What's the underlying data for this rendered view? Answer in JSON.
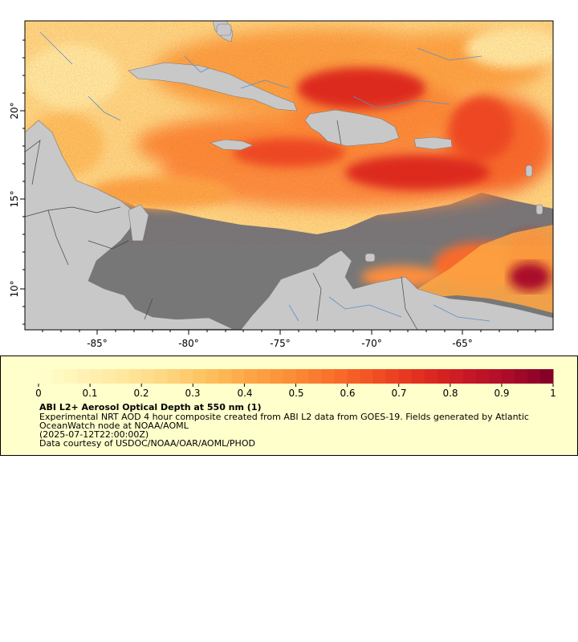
{
  "map": {
    "lon_ticks": [
      "-85°",
      "-80°",
      "-75°",
      "-70°",
      "-65°"
    ],
    "lat_ticks": [
      "20°",
      "15°",
      "10°"
    ],
    "colors": {
      "land": "#c8c8c8",
      "ocean_nodata": "#777777",
      "borders": "#555555",
      "rivers": "#5b8fc8"
    }
  },
  "legend": {
    "ticks": [
      "0",
      "0.1",
      "0.2",
      "0.3",
      "0.4",
      "0.5",
      "0.6",
      "0.7",
      "0.8",
      "0.9",
      "1"
    ],
    "title": "ABI L2+ Aerosol Optical Depth at 550 nm (1)",
    "desc_line1": "Experimental NRT AOD 4 hour composite created from ABI L2 data from GOES-19. Fields generated by Atlantic",
    "desc_line2": "OceanWatch node at NOAA/AOML",
    "date": "(2025-07-12T22:00:00Z)",
    "credit": "Data courtesy of USDOC/NOAA/OAR/AOML/PHOD",
    "colormap": [
      "#ffffcc",
      "#fff3b5",
      "#ffe79c",
      "#fed57f",
      "#febf5c",
      "#fda443",
      "#fc8a35",
      "#f86b2a",
      "#ef4a21",
      "#de2b1f",
      "#c81826",
      "#aa0a2a",
      "#800026"
    ]
  }
}
